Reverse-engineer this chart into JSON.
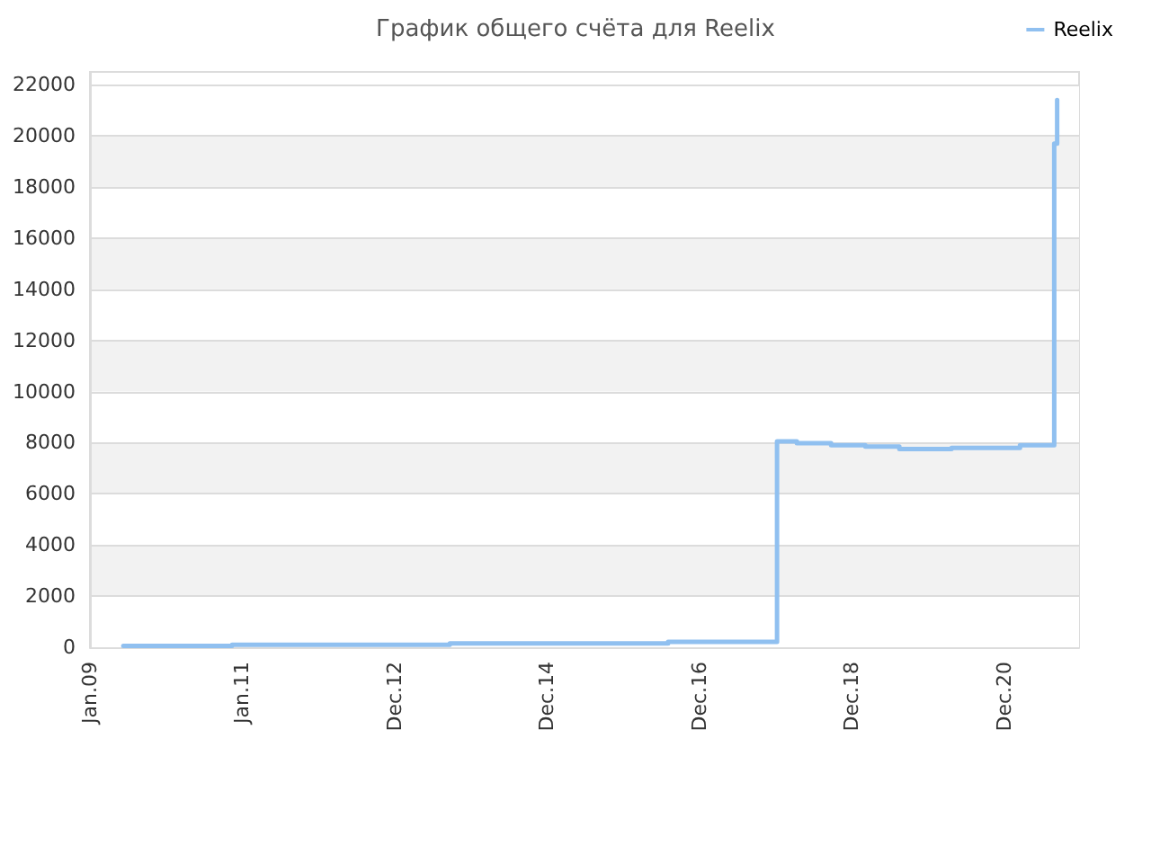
{
  "chart_data": {
    "type": "step",
    "title": "График общего счёта для Reelix",
    "x": [
      "2009-06-10",
      "2010-11-13",
      "2013-09-21",
      "2016-08-02",
      "2018-01-06",
      "2018-04-11",
      "2018-09-22",
      "2019-03-05",
      "2019-08-15",
      "2020-04-21",
      "2021-03-15",
      "2021-08-26",
      "2021-09-09",
      "2021-09-14"
    ],
    "series": [
      {
        "name": "Reelix",
        "color": "#90c0f0",
        "values": [
          50,
          100,
          150,
          210,
          8050,
          7980,
          7900,
          7850,
          7750,
          7800,
          7900,
          19700,
          21400,
          21400
        ]
      }
    ],
    "xlim": [
      "2009-01-01",
      "2021-12-23"
    ],
    "xticks": [
      {
        "value": "2009-01-01",
        "label": "Jan.09"
      },
      {
        "value": "2011-01-01",
        "label": "Jan.11"
      },
      {
        "value": "2012-12-31",
        "label": "Dec.12"
      },
      {
        "value": "2014-12-31",
        "label": "Dec.14"
      },
      {
        "value": "2016-12-30",
        "label": "Dec.16"
      },
      {
        "value": "2018-12-30",
        "label": "Dec.18"
      },
      {
        "value": "2020-12-29",
        "label": "Dec.20"
      }
    ],
    "ylim": [
      0,
      22500
    ],
    "yticks": [
      0,
      2000,
      4000,
      6000,
      8000,
      10000,
      12000,
      14000,
      16000,
      18000,
      20000,
      22000
    ],
    "grid": "y",
    "legend": "top right",
    "marker": "none"
  }
}
